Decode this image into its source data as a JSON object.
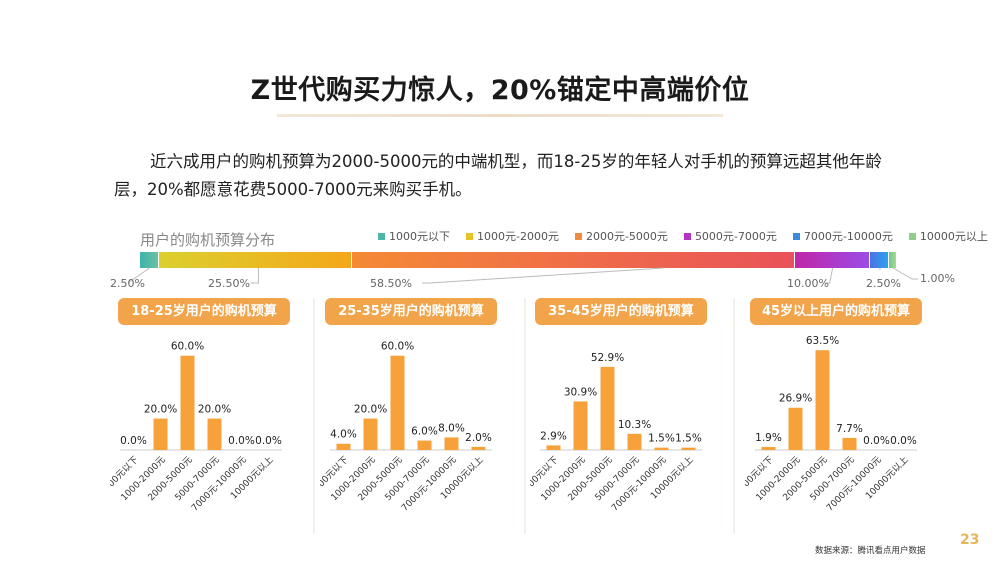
{
  "header": {
    "title": "Z世代购买力惊人，20%锚定中高端价位"
  },
  "paragraph": "近六成用户的购机预算为2000-5000元的中端机型，而18-25岁的年轻人对手机的预算远超其他年龄层，20%都愿意花费5000-7000元来购买手机。",
  "colors": {
    "accent": "#f2a44a",
    "bar": "#f7a13a"
  },
  "chart_data": [
    {
      "type": "bar",
      "orientation": "horizontal-stacked",
      "title": "用户的购机预算分布",
      "legend_position": "top-right",
      "categories": [
        "1000元以下",
        "1000元-2000元",
        "2000元-5000元",
        "5000元-7000元",
        "7000元-10000元",
        "10000元以上"
      ],
      "values": [
        2.5,
        25.5,
        58.5,
        10.0,
        2.5,
        1.0
      ],
      "labels": [
        "2.50%",
        "25.50%",
        "58.50%",
        "10.00%",
        "2.50%",
        "1.00%"
      ],
      "colors": [
        "#4db6a8",
        "#e8c325",
        "#f08a3c",
        "#b733c2",
        "#3a8be0",
        "#8fcf8a"
      ]
    },
    {
      "type": "bar",
      "title": "18-25岁用户的购机预算",
      "categories": [
        "1000元以下",
        "1000-2000元",
        "2000-5000元",
        "5000-7000元",
        "7000元-10000元",
        "10000元以上"
      ],
      "values": [
        0.0,
        20.0,
        60.0,
        20.0,
        0.0,
        0.0
      ],
      "labels": [
        "0.0%",
        "20.0%",
        "60.0%",
        "20.0%",
        "0.0%",
        "0.0%"
      ],
      "ylim": [
        0,
        70
      ]
    },
    {
      "type": "bar",
      "title": "25-35岁用户的购机预算",
      "categories": [
        "1000元以下",
        "1000-2000元",
        "2000-5000元",
        "5000-7000元",
        "7000元-10000元",
        "10000元以上"
      ],
      "values": [
        4.0,
        20.0,
        60.0,
        6.0,
        8.0,
        2.0
      ],
      "labels": [
        "4.0%",
        "20.0%",
        "60.0%",
        "6.0%",
        "8.0%",
        "2.0%"
      ],
      "ylim": [
        0,
        70
      ]
    },
    {
      "type": "bar",
      "title": "35-45岁用户的购机预算",
      "categories": [
        "1000元以下",
        "1000-2000元",
        "2000-5000元",
        "5000-7000元",
        "7000元-10000元",
        "10000元以上"
      ],
      "values": [
        2.9,
        30.9,
        52.9,
        10.3,
        1.5,
        1.5
      ],
      "labels": [
        "2.9%",
        "30.9%",
        "52.9%",
        "10.3%",
        "1.5%",
        "1.5%"
      ],
      "ylim": [
        0,
        70
      ]
    },
    {
      "type": "bar",
      "title": "45岁以上用户的购机预算",
      "categories": [
        "1000元以下",
        "1000-2000元",
        "2000-5000元",
        "5000-7000元",
        "7000元-10000元",
        "10000元以上"
      ],
      "values": [
        1.9,
        26.9,
        63.5,
        7.7,
        0.0,
        0.0
      ],
      "labels": [
        "1.9%",
        "26.9%",
        "63.5%",
        "7.7%",
        "0.0%",
        "0.0%"
      ],
      "ylim": [
        0,
        70
      ]
    }
  ],
  "footer": {
    "source": "数据来源：腾讯看点用户数据",
    "page": "23"
  }
}
